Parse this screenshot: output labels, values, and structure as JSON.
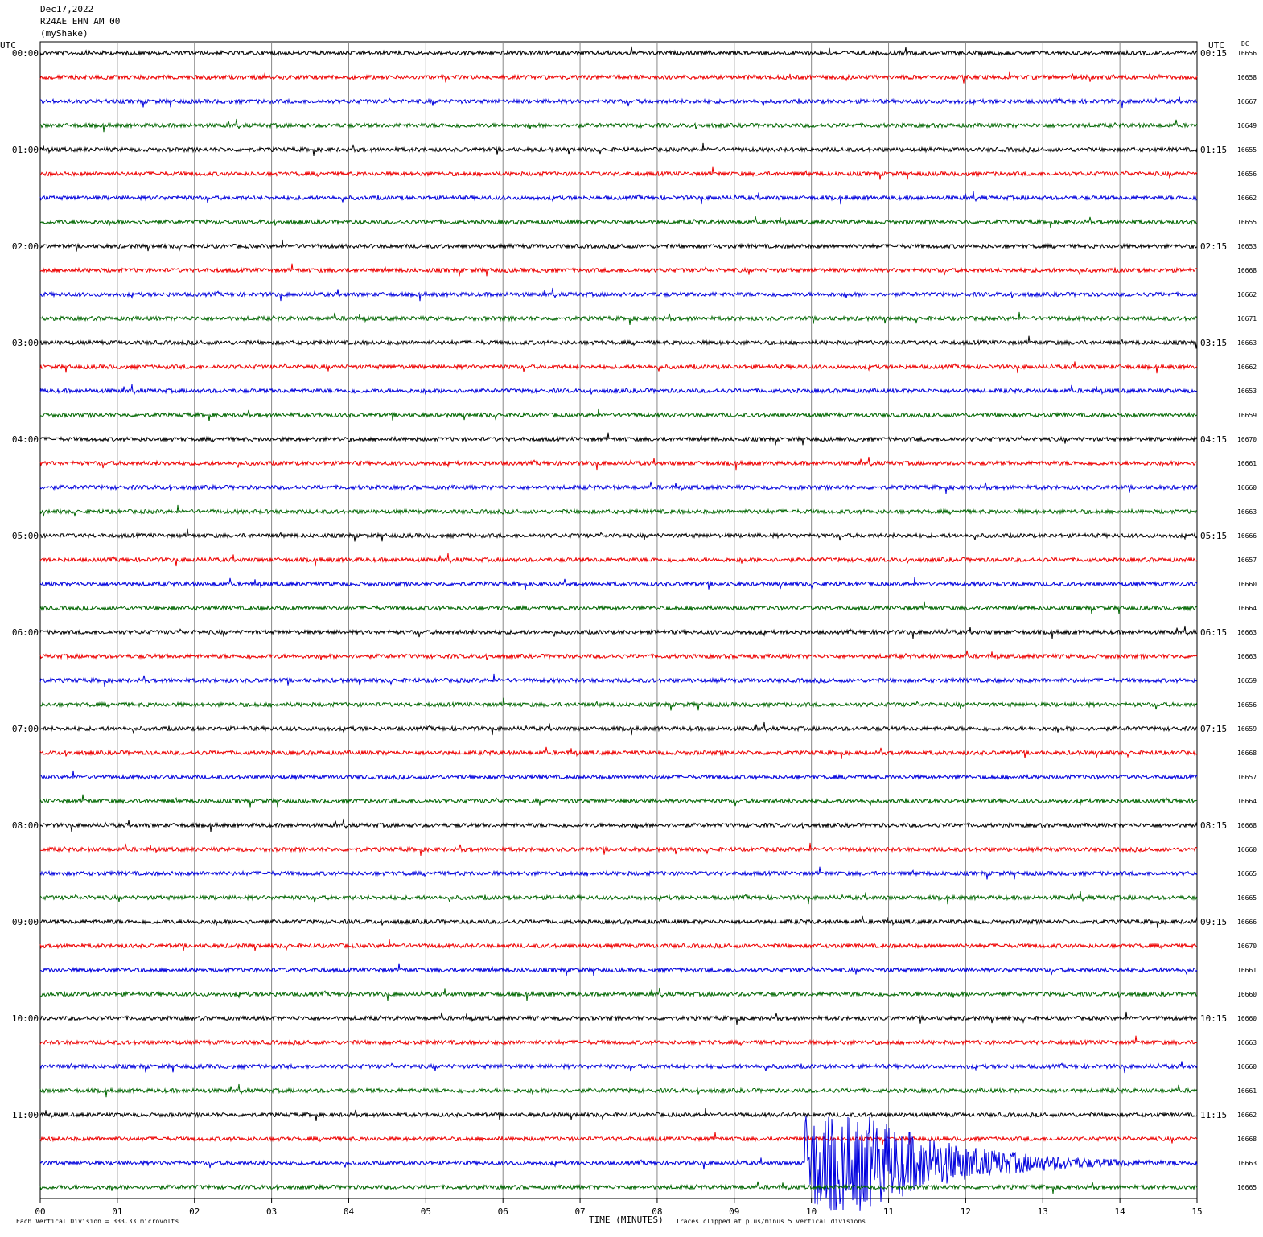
{
  "header": {
    "date": "Dec17,2022",
    "station": "R24AE EHN AM 00",
    "network": "(myShake)"
  },
  "left": {
    "unit": "UTC",
    "hours": [
      "00:00",
      "01:00",
      "02:00",
      "03:00",
      "04:00",
      "05:00",
      "06:00",
      "07:00",
      "08:00",
      "09:00",
      "10:00",
      "11:00"
    ]
  },
  "right": {
    "unit": "UTC",
    "hours": [
      "00:15",
      "01:15",
      "02:15",
      "03:15",
      "04:15",
      "05:15",
      "06:15",
      "07:15",
      "08:15",
      "09:15",
      "10:15",
      "11:15"
    ]
  },
  "dc": {
    "label": "DC",
    "values": [
      16656,
      16658,
      16667,
      16649,
      16655,
      16656,
      16662,
      16655,
      16653,
      16668,
      16662,
      16671,
      16663,
      16662,
      16653,
      16659,
      16670,
      16661,
      16660,
      16663,
      16666,
      16657,
      16660,
      16664,
      16663,
      16663,
      16659,
      16656,
      16659,
      16668,
      16657,
      16664,
      16668,
      16660,
      16665,
      16665,
      16666,
      16670,
      16661,
      16660,
      16660,
      16663,
      16660,
      16661,
      16662,
      16668,
      16663,
      16665
    ]
  },
  "x_axis": {
    "ticks": [
      "00",
      "01",
      "02",
      "03",
      "04",
      "05",
      "06",
      "07",
      "08",
      "09",
      "10",
      "11",
      "12",
      "13",
      "14",
      "15"
    ],
    "label": "TIME (MINUTES)"
  },
  "footer": {
    "scale": "Each Vertical Division =  333.33 microvolts",
    "clip": "Traces clipped at plus/minus 5 vertical divisions"
  }
}
